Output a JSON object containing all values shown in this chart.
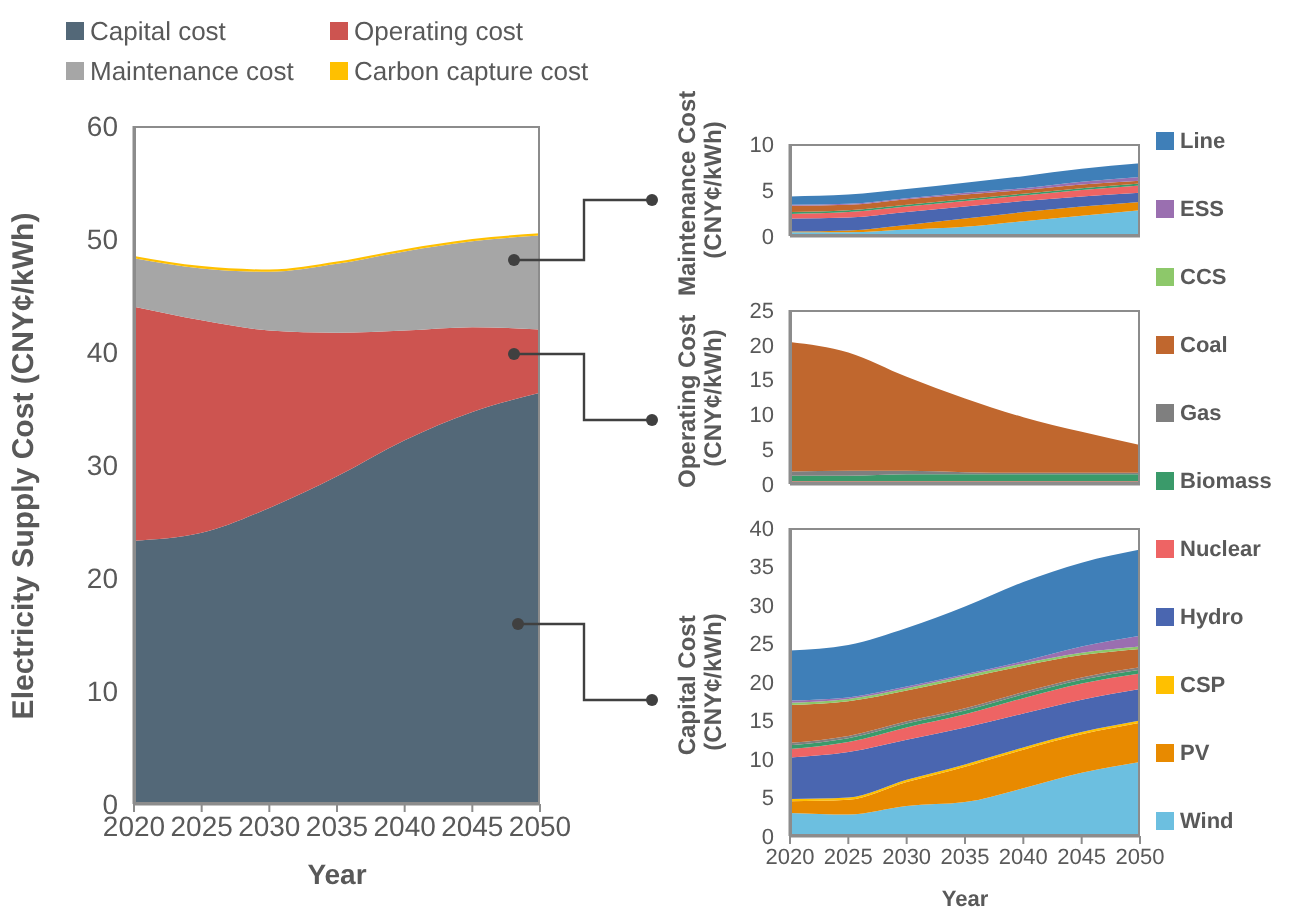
{
  "chart_data": [
    {
      "type": "area",
      "stacked": true,
      "legend": "top",
      "xlabel": "Year",
      "ylabel": "Electricity Supply Cost (CNY¢/kWh)",
      "x": [
        2020,
        2025,
        2030,
        2035,
        2040,
        2045,
        2050
      ],
      "xlim": [
        2020,
        2050
      ],
      "xticks": [
        2020,
        2025,
        2030,
        2035,
        2040,
        2045,
        2050
      ],
      "ylim": [
        0,
        60
      ],
      "yticks": [
        0,
        10,
        20,
        30,
        40,
        50,
        60
      ],
      "series": [
        {
          "name": "Capital cost",
          "color": "#536878",
          "values": [
            23.3,
            24.0,
            26.2,
            29.0,
            32.2,
            34.7,
            36.4
          ]
        },
        {
          "name": "Operating cost",
          "color": "#cd5450",
          "values": [
            20.7,
            18.8,
            15.7,
            12.7,
            9.7,
            7.5,
            5.6
          ]
        },
        {
          "name": "Maintenance cost",
          "color": "#a6a6a6",
          "values": [
            4.3,
            4.6,
            5.2,
            6.1,
            7.0,
            7.6,
            8.3
          ]
        },
        {
          "name": "Carbon capture cost",
          "color": "#ffc000",
          "values": [
            0.2,
            0.2,
            0.2,
            0.2,
            0.2,
            0.2,
            0.2
          ]
        }
      ]
    },
    {
      "type": "area",
      "stacked": true,
      "tick_labels": "y",
      "ylabel": "Maintenance Cost (CNY¢/kWh)",
      "x": [
        2020,
        2025,
        2030,
        2035,
        2040,
        2045,
        2050
      ],
      "xlim": [
        2020,
        2050
      ],
      "xticks": [
        2020,
        2025,
        2030,
        2035,
        2040,
        2045,
        2050
      ],
      "ylim": [
        0,
        10
      ],
      "yticks": [
        0,
        5,
        10
      ],
      "series": [
        {
          "color": "#6cbfe0",
          "values": [
            0.4,
            0.4,
            0.7,
            1.0,
            1.6,
            2.2,
            2.8
          ]
        },
        {
          "color": "#e88a00",
          "values": [
            0.1,
            0.2,
            0.5,
            0.9,
            1.0,
            1.0,
            0.9
          ]
        },
        {
          "color": "#4a66b0",
          "values": [
            1.4,
            1.4,
            1.4,
            1.3,
            1.2,
            1.1,
            1.0
          ]
        },
        {
          "color": "#ee6464",
          "values": [
            0.5,
            0.6,
            0.6,
            0.6,
            0.6,
            0.7,
            0.8
          ]
        },
        {
          "color": "#3a9a6a",
          "values": [
            0.2,
            0.2,
            0.2,
            0.2,
            0.2,
            0.2,
            0.2
          ]
        },
        {
          "color": "#c0672e",
          "values": [
            0.7,
            0.6,
            0.6,
            0.5,
            0.4,
            0.4,
            0.3
          ]
        },
        {
          "color": "#9a6fb0",
          "values": [
            0.1,
            0.1,
            0.1,
            0.2,
            0.2,
            0.3,
            0.4
          ]
        },
        {
          "color": "#3f7fb8",
          "values": [
            0.9,
            1.0,
            1.0,
            1.1,
            1.3,
            1.4,
            1.5
          ]
        }
      ]
    },
    {
      "type": "area",
      "stacked": true,
      "tick_labels": "y",
      "ylabel": "Operating Cost (CNY¢/kWh)",
      "x": [
        2020,
        2025,
        2030,
        2035,
        2040,
        2045,
        2050
      ],
      "xlim": [
        2020,
        2050
      ],
      "xticks": [
        2020,
        2025,
        2030,
        2035,
        2040,
        2045,
        2050
      ],
      "ylim": [
        0,
        25
      ],
      "yticks": [
        0,
        5,
        10,
        15,
        20,
        25
      ],
      "series": [
        {
          "color": "#ee6464",
          "values": [
            0.4,
            0.4,
            0.4,
            0.4,
            0.4,
            0.4,
            0.4
          ]
        },
        {
          "color": "#3a9a6a",
          "values": [
            0.8,
            0.8,
            1.0,
            1.0,
            1.0,
            1.0,
            1.0
          ]
        },
        {
          "color": "#7f7f7f",
          "values": [
            0.6,
            0.7,
            0.5,
            0.3,
            0.2,
            0.2,
            0.2
          ]
        },
        {
          "color": "#c0672e",
          "values": [
            18.6,
            17.0,
            13.5,
            10.6,
            8.0,
            5.9,
            4.0
          ]
        }
      ]
    },
    {
      "type": "area",
      "stacked": true,
      "legend": "right",
      "xlabel": "Year",
      "ylabel": "Capital Cost (CNY¢/kWh)",
      "x": [
        2020,
        2025,
        2030,
        2035,
        2040,
        2045,
        2050
      ],
      "xlim": [
        2020,
        2050
      ],
      "xticks": [
        2020,
        2025,
        2030,
        2035,
        2040,
        2045,
        2050
      ],
      "ylim": [
        0,
        40
      ],
      "yticks": [
        0,
        5,
        10,
        15,
        20,
        25,
        30,
        35,
        40
      ],
      "series": [
        {
          "name": "Wind",
          "color": "#6cbfe0",
          "values": [
            3.0,
            2.8,
            3.9,
            4.4,
            6.2,
            8.2,
            9.6
          ]
        },
        {
          "name": "PV",
          "color": "#e88a00",
          "values": [
            1.5,
            1.9,
            3.1,
            4.6,
            5.0,
            5.0,
            5.1
          ]
        },
        {
          "name": "CSP",
          "color": "#ffc000",
          "values": [
            0.3,
            0.3,
            0.3,
            0.3,
            0.3,
            0.3,
            0.3
          ]
        },
        {
          "name": "Hydro",
          "color": "#4a66b0",
          "values": [
            5.4,
            5.9,
            5.2,
            4.8,
            4.4,
            4.2,
            4.1
          ]
        },
        {
          "name": "Nuclear",
          "color": "#ee6464",
          "values": [
            1.1,
            1.3,
            1.6,
            1.7,
            2.0,
            2.1,
            2.0
          ]
        },
        {
          "name": "Biomass",
          "color": "#3a9a6a",
          "values": [
            0.5,
            0.5,
            0.5,
            0.5,
            0.5,
            0.5,
            0.5
          ]
        },
        {
          "name": "Gas",
          "color": "#7f7f7f",
          "values": [
            0.3,
            0.3,
            0.3,
            0.3,
            0.3,
            0.3,
            0.3
          ]
        },
        {
          "name": "Coal",
          "color": "#c0672e",
          "values": [
            4.9,
            4.5,
            4.0,
            3.9,
            3.4,
            2.9,
            2.4
          ]
        },
        {
          "name": "CCS",
          "color": "#8dc86a",
          "values": [
            0.3,
            0.3,
            0.3,
            0.3,
            0.3,
            0.3,
            0.3
          ]
        },
        {
          "name": "ESS",
          "color": "#9a6fb0",
          "values": [
            0.3,
            0.2,
            0.2,
            0.2,
            0.3,
            0.8,
            1.4
          ]
        },
        {
          "name": "Line",
          "color": "#3f7fb8",
          "values": [
            6.5,
            6.8,
            7.6,
            8.8,
            10.3,
            10.9,
            11.2
          ]
        }
      ]
    }
  ]
}
